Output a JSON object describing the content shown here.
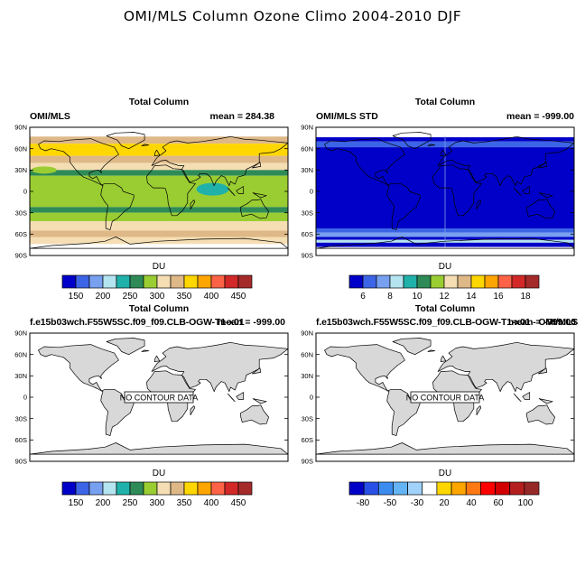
{
  "figure_title": "OMI/MLS Column Ozone Climo 2004-2010 DJF",
  "lat_labels": [
    "90N",
    "60N",
    "30N",
    "0",
    "30S",
    "60S",
    "90S"
  ],
  "chart_data": [
    {
      "type": "heatmap",
      "center_title": "Total Column",
      "left_label": "OMI/MLS",
      "right_label": "mean = 284.38",
      "units": "DU",
      "colorbar_colors": [
        "#0000c8",
        "#3c64e6",
        "#78a0f0",
        "#b4e4f0",
        "#20b2aa",
        "#2e8b57",
        "#9acd32",
        "#f5deb3",
        "#deb887",
        "#ffd700",
        "#ffa500",
        "#ff6347",
        "#d22828",
        "#a52a2a"
      ],
      "colorbar_labels": [
        "150",
        "200",
        "250",
        "300",
        "350",
        "400",
        "450"
      ],
      "bands": [
        {
          "lat_top": 90,
          "lat_bottom": 77,
          "color": "#ffffff"
        },
        {
          "lat_top": 77,
          "lat_bottom": 67,
          "color": "#deb887"
        },
        {
          "lat_top": 67,
          "lat_bottom": 50,
          "color": "#ffd700"
        },
        {
          "lat_top": 50,
          "lat_bottom": 40,
          "color": "#deb887"
        },
        {
          "lat_top": 40,
          "lat_bottom": 30,
          "color": "#f5deb3"
        },
        {
          "lat_top": 30,
          "lat_bottom": 22,
          "color": "#2e8b57"
        },
        {
          "lat_top": 22,
          "lat_bottom": -22,
          "color": "#9acd32"
        },
        {
          "lat_top": -22,
          "lat_bottom": -30,
          "color": "#2e8b57"
        },
        {
          "lat_top": -30,
          "lat_bottom": -42,
          "color": "#9acd32"
        },
        {
          "lat_top": -42,
          "lat_bottom": -55,
          "color": "#f5deb3"
        },
        {
          "lat_top": -55,
          "lat_bottom": -64,
          "color": "#deb887"
        },
        {
          "lat_top": -64,
          "lat_bottom": -74,
          "color": "#f5deb3"
        },
        {
          "lat_top": -74,
          "lat_bottom": -90,
          "color": "#ffffff"
        }
      ]
    },
    {
      "type": "heatmap",
      "center_title": "Total Column",
      "left_label": "OMI/MLS STD",
      "right_label": "mean = -999.00",
      "units": "DU",
      "colorbar_colors": [
        "#0000c8",
        "#3c64e6",
        "#78a0f0",
        "#b4e4f0",
        "#20b2aa",
        "#2e8b57",
        "#9acd32",
        "#f5deb3",
        "#deb887",
        "#ffd700",
        "#ffa500",
        "#ff6347",
        "#d22828",
        "#a52a2a"
      ],
      "colorbar_labels": [
        "6",
        "8",
        "10",
        "12",
        "14",
        "16",
        "18"
      ],
      "bands": [
        {
          "lat_top": 90,
          "lat_bottom": 76,
          "color": "#ffffff"
        },
        {
          "lat_top": 76,
          "lat_bottom": 70,
          "color": "#0000c8"
        },
        {
          "lat_top": 70,
          "lat_bottom": 62,
          "color": "#3c64e6"
        },
        {
          "lat_top": 62,
          "lat_bottom": -52,
          "color": "#0000c8"
        },
        {
          "lat_top": -52,
          "lat_bottom": -58,
          "color": "#3c64e6"
        },
        {
          "lat_top": -58,
          "lat_bottom": -64,
          "color": "#78a0f0"
        },
        {
          "lat_top": -64,
          "lat_bottom": -68,
          "color": "#0000c8"
        },
        {
          "lat_top": -68,
          "lat_bottom": -72,
          "color": "#b4e4f0"
        },
        {
          "lat_top": -72,
          "lat_bottom": -78,
          "color": "#0000c8"
        },
        {
          "lat_top": -78,
          "lat_bottom": -90,
          "color": "#ffffff"
        }
      ]
    },
    {
      "type": "heatmap",
      "center_title": "Total Column",
      "left_label": "f.e15b03wch.F55W5SC.f09_f09.CLB-OGW-T1-x01",
      "right_label": "mean = -999.00",
      "units": "DU",
      "no_data_text": "NO CONTOUR DATA",
      "colorbar_colors": [
        "#0000c8",
        "#3c64e6",
        "#78a0f0",
        "#b4e4f0",
        "#20b2aa",
        "#2e8b57",
        "#9acd32",
        "#f5deb3",
        "#deb887",
        "#ffd700",
        "#ffa500",
        "#ff6347",
        "#d22828",
        "#a52a2a"
      ],
      "colorbar_labels": [
        "150",
        "200",
        "250",
        "300",
        "350",
        "400",
        "450"
      ],
      "bands": []
    },
    {
      "type": "heatmap",
      "center_title": "Total Column",
      "left_label": "f.e15b03wch.F55W5SC.f09_f09.CLB-OGW-T1-x01 - OMI/MLS",
      "right_label": "mean = -999.00",
      "units": "DU",
      "no_data_text": "NO CONTOUR DATA",
      "colorbar_colors": [
        "#0000c8",
        "#2850e6",
        "#3c8cf0",
        "#64b4f5",
        "#a0d2fa",
        "#ffffff",
        "#ffd700",
        "#ffa500",
        "#ff7814",
        "#ff0000",
        "#d20000",
        "#b41e1e",
        "#962828"
      ],
      "colorbar_labels": [
        "-80",
        "-50",
        "-30",
        "20",
        "40",
        "60",
        "100"
      ],
      "bands": []
    }
  ]
}
